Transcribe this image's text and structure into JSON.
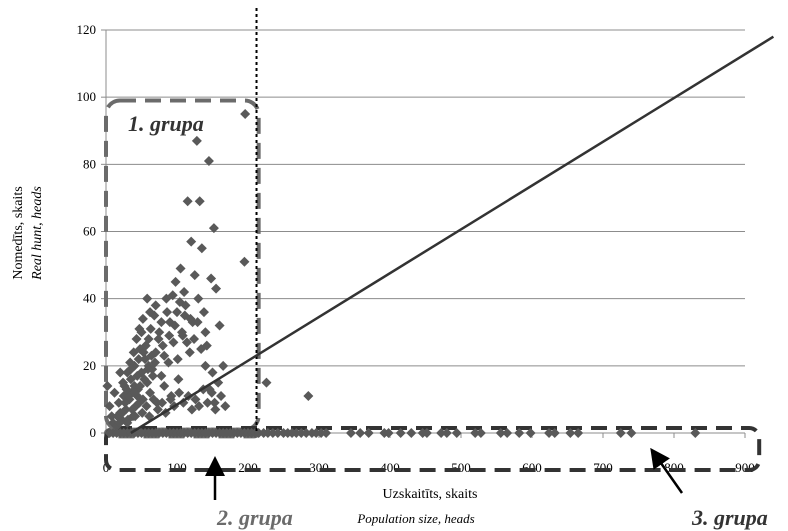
{
  "chart_data": {
    "type": "scatter",
    "xlabel": "Uzskaitīts, skaits",
    "xlabel_en": "Population size, heads",
    "ylabel": "Nomedīts, skaits",
    "ylabel_en": "Real hunt, heads",
    "xlim": [
      0,
      900
    ],
    "ylim": [
      0,
      120
    ],
    "xticks": [
      0,
      100,
      200,
      300,
      400,
      500,
      600,
      700,
      800,
      900
    ],
    "yticks": [
      0,
      20,
      40,
      60,
      80,
      100,
      120
    ],
    "grid": "horizontal",
    "marker_color": "#595959",
    "line_color": "#333333",
    "divider_x": 212,
    "trend_line": [
      [
        35,
        0
      ],
      [
        940,
        118
      ]
    ],
    "groups": [
      {
        "label": "1. grupa",
        "x_range": [
          0,
          215
        ],
        "y_range": [
          1,
          99
        ]
      },
      {
        "label": "2. grupa",
        "x_range": [
          0,
          215
        ],
        "y_range": [
          -1,
          1
        ]
      },
      {
        "label": "3. grupa",
        "x_range": [
          0,
          920
        ],
        "y_range": [
          -11,
          1.5
        ]
      }
    ],
    "points": [
      [
        2,
        14
      ],
      [
        5,
        8
      ],
      [
        8,
        5
      ],
      [
        10,
        3
      ],
      [
        12,
        12
      ],
      [
        15,
        2
      ],
      [
        18,
        9
      ],
      [
        20,
        6
      ],
      [
        22,
        4
      ],
      [
        25,
        11
      ],
      [
        28,
        7
      ],
      [
        30,
        3
      ],
      [
        33,
        10
      ],
      [
        35,
        16
      ],
      [
        38,
        5
      ],
      [
        40,
        20
      ],
      [
        42,
        8
      ],
      [
        45,
        13
      ],
      [
        48,
        25
      ],
      [
        50,
        18
      ],
      [
        52,
        10
      ],
      [
        55,
        22
      ],
      [
        58,
        15
      ],
      [
        60,
        28
      ],
      [
        62,
        12
      ],
      [
        65,
        19
      ],
      [
        68,
        35
      ],
      [
        70,
        24
      ],
      [
        72,
        9
      ],
      [
        75,
        30
      ],
      [
        78,
        17
      ],
      [
        80,
        26
      ],
      [
        82,
        14
      ],
      [
        85,
        40
      ],
      [
        88,
        21
      ],
      [
        90,
        33
      ],
      [
        92,
        11
      ],
      [
        95,
        27
      ],
      [
        98,
        45
      ],
      [
        100,
        36
      ],
      [
        102,
        16
      ],
      [
        105,
        49
      ],
      [
        108,
        29
      ],
      [
        110,
        42
      ],
      [
        112,
        38
      ],
      [
        115,
        69
      ],
      [
        118,
        24
      ],
      [
        120,
        57
      ],
      [
        122,
        33
      ],
      [
        125,
        47
      ],
      [
        128,
        87
      ],
      [
        130,
        40
      ],
      [
        132,
        69
      ],
      [
        135,
        55
      ],
      [
        138,
        36
      ],
      [
        140,
        30
      ],
      [
        142,
        26
      ],
      [
        145,
        81
      ],
      [
        148,
        46
      ],
      [
        150,
        18
      ],
      [
        152,
        61
      ],
      [
        155,
        43
      ],
      [
        158,
        15
      ],
      [
        160,
        32
      ],
      [
        162,
        11
      ],
      [
        165,
        20
      ],
      [
        168,
        8
      ],
      [
        195,
        51
      ],
      [
        196,
        95
      ],
      [
        20,
        18
      ],
      [
        24,
        15
      ],
      [
        26,
        14
      ],
      [
        30,
        18
      ],
      [
        32,
        11
      ],
      [
        34,
        21
      ],
      [
        36,
        12
      ],
      [
        40,
        14
      ],
      [
        44,
        17
      ],
      [
        46,
        22
      ],
      [
        50,
        30
      ],
      [
        53,
        24
      ],
      [
        56,
        26
      ],
      [
        60,
        20
      ],
      [
        63,
        31
      ],
      [
        66,
        17
      ],
      [
        70,
        38
      ],
      [
        74,
        28
      ],
      [
        78,
        33
      ],
      [
        82,
        23
      ],
      [
        86,
        36
      ],
      [
        89,
        29
      ],
      [
        94,
        41
      ],
      [
        97,
        32
      ],
      [
        101,
        22
      ],
      [
        104,
        39
      ],
      [
        107,
        30
      ],
      [
        111,
        35
      ],
      [
        114,
        27
      ],
      [
        119,
        34
      ],
      [
        124,
        28
      ],
      [
        129,
        33
      ],
      [
        134,
        25
      ],
      [
        140,
        20
      ],
      [
        146,
        13
      ],
      [
        153,
        9
      ],
      [
        16,
        5
      ],
      [
        19,
        3
      ],
      [
        23,
        6
      ],
      [
        27,
        9
      ],
      [
        31,
        4
      ],
      [
        37,
        7
      ],
      [
        41,
        5
      ],
      [
        47,
        9
      ],
      [
        51,
        6
      ],
      [
        57,
        8
      ],
      [
        61,
        5
      ],
      [
        67,
        10
      ],
      [
        73,
        7
      ],
      [
        79,
        9
      ],
      [
        84,
        6
      ],
      [
        91,
        10
      ],
      [
        96,
        8
      ],
      [
        103,
        12
      ],
      [
        109,
        9
      ],
      [
        116,
        11
      ],
      [
        121,
        7
      ],
      [
        126,
        10
      ],
      [
        131,
        8
      ],
      [
        137,
        13
      ],
      [
        143,
        9
      ],
      [
        149,
        12
      ],
      [
        154,
        7
      ],
      [
        40,
        12
      ],
      [
        44,
        11
      ],
      [
        48,
        14
      ],
      [
        54,
        16
      ],
      [
        59,
        19
      ],
      [
        64,
        23
      ],
      [
        69,
        21
      ],
      [
        58,
        40
      ],
      [
        62,
        36
      ],
      [
        47,
        31
      ],
      [
        52,
        34
      ],
      [
        43,
        28
      ],
      [
        39,
        24
      ],
      [
        35,
        19
      ],
      [
        29,
        13
      ],
      [
        226,
        15
      ],
      [
        285,
        11
      ],
      [
        5,
        0
      ],
      [
        10,
        0
      ],
      [
        15,
        0
      ],
      [
        20,
        0
      ],
      [
        25,
        0
      ],
      [
        30,
        0
      ],
      [
        35,
        0
      ],
      [
        40,
        0
      ],
      [
        45,
        0
      ],
      [
        50,
        0
      ],
      [
        55,
        0
      ],
      [
        60,
        0
      ],
      [
        65,
        0
      ],
      [
        70,
        0
      ],
      [
        75,
        0
      ],
      [
        80,
        0
      ],
      [
        85,
        0
      ],
      [
        90,
        0
      ],
      [
        95,
        0
      ],
      [
        100,
        0
      ],
      [
        105,
        0
      ],
      [
        110,
        0
      ],
      [
        115,
        0
      ],
      [
        120,
        0
      ],
      [
        125,
        0
      ],
      [
        130,
        0
      ],
      [
        135,
        0
      ],
      [
        140,
        0
      ],
      [
        145,
        0
      ],
      [
        150,
        0
      ],
      [
        155,
        0
      ],
      [
        160,
        0
      ],
      [
        165,
        0
      ],
      [
        170,
        0
      ],
      [
        175,
        0
      ],
      [
        180,
        0
      ],
      [
        185,
        0
      ],
      [
        190,
        0
      ],
      [
        195,
        0
      ],
      [
        200,
        0
      ],
      [
        205,
        0
      ],
      [
        210,
        0
      ],
      [
        215,
        0
      ],
      [
        222,
        0
      ],
      [
        228,
        0
      ],
      [
        235,
        0
      ],
      [
        242,
        0
      ],
      [
        250,
        0
      ],
      [
        256,
        0
      ],
      [
        262,
        0
      ],
      [
        268,
        0
      ],
      [
        275,
        0
      ],
      [
        282,
        0
      ],
      [
        290,
        0
      ],
      [
        296,
        0
      ],
      [
        303,
        0
      ],
      [
        310,
        0
      ],
      [
        345,
        0
      ],
      [
        358,
        0
      ],
      [
        370,
        0
      ],
      [
        392,
        0
      ],
      [
        398,
        0
      ],
      [
        415,
        0
      ],
      [
        430,
        0
      ],
      [
        446,
        0
      ],
      [
        452,
        0
      ],
      [
        472,
        0
      ],
      [
        480,
        0
      ],
      [
        494,
        0
      ],
      [
        520,
        0
      ],
      [
        528,
        0
      ],
      [
        556,
        0
      ],
      [
        565,
        0
      ],
      [
        582,
        0
      ],
      [
        598,
        0
      ],
      [
        624,
        0
      ],
      [
        632,
        0
      ],
      [
        654,
        0
      ],
      [
        665,
        0
      ],
      [
        725,
        0
      ],
      [
        740,
        0
      ],
      [
        830,
        0
      ]
    ]
  }
}
